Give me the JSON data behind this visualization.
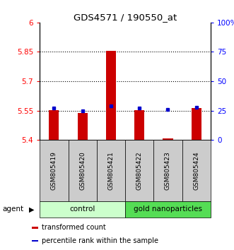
{
  "title": "GDS4571 / 190550_at",
  "samples": [
    "GSM805419",
    "GSM805420",
    "GSM805421",
    "GSM805422",
    "GSM805423",
    "GSM805424"
  ],
  "red_values": [
    5.551,
    5.537,
    5.855,
    5.551,
    5.408,
    5.562
  ],
  "blue_values_pct": [
    27,
    25,
    29,
    27,
    26,
    28
  ],
  "ylim_left": [
    5.4,
    6.0
  ],
  "ylim_right": [
    0,
    100
  ],
  "yticks_left": [
    5.4,
    5.55,
    5.7,
    5.85,
    6.0
  ],
  "ytick_labels_left": [
    "5.4",
    "5.55",
    "5.7",
    "5.85",
    "6"
  ],
  "yticks_right": [
    0,
    25,
    50,
    75,
    100
  ],
  "ytick_labels_right": [
    "0",
    "25",
    "50",
    "75",
    "100%"
  ],
  "hlines": [
    5.55,
    5.7,
    5.85
  ],
  "bar_bottom": 5.4,
  "bar_width": 0.35,
  "bar_color_red": "#cc0000",
  "bar_color_blue": "#0000cc",
  "group_labels": [
    "control",
    "gold nanoparticles"
  ],
  "group_color_light": "#ccffcc",
  "group_color_dark": "#55dd55",
  "group_ranges": [
    [
      0,
      3
    ],
    [
      3,
      6
    ]
  ],
  "sample_box_color": "#cccccc",
  "agent_label": "agent",
  "legend_items": [
    "transformed count",
    "percentile rank within the sample"
  ],
  "legend_colors": [
    "#cc0000",
    "#0000cc"
  ]
}
